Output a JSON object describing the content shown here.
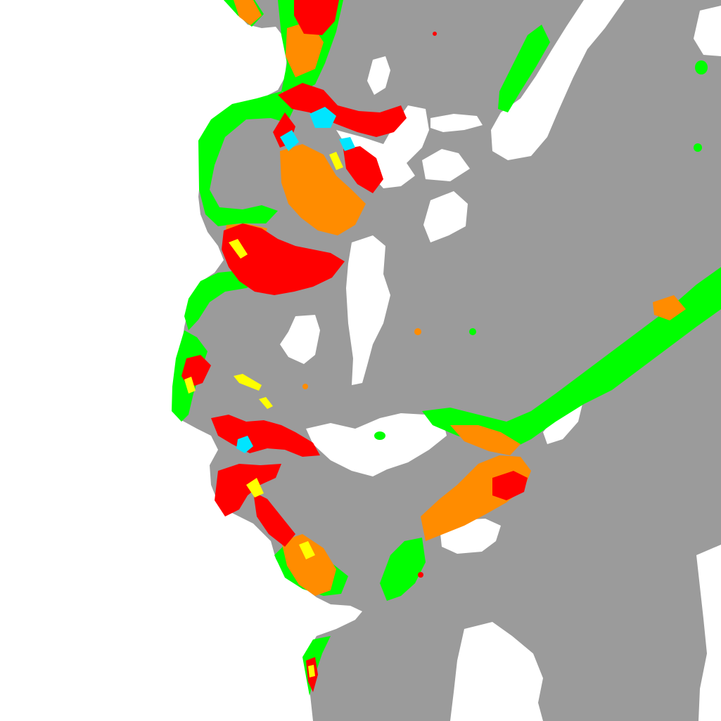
{
  "map": {
    "kind": "classified raster map",
    "legend_visible": false,
    "printed_text": [],
    "palette": {
      "background": "#ffffff",
      "land": "#9b9b9b",
      "class_green": "#00ff00",
      "class_orange": "#ff8c00",
      "class_red": "#ff0000",
      "class_yellow": "#ffff00",
      "class_cyan": "#00e5ff"
    },
    "layers": [
      "land",
      "inland-white",
      "green-class",
      "orange-class",
      "red-class",
      "yellow-class",
      "cyan-class"
    ]
  }
}
